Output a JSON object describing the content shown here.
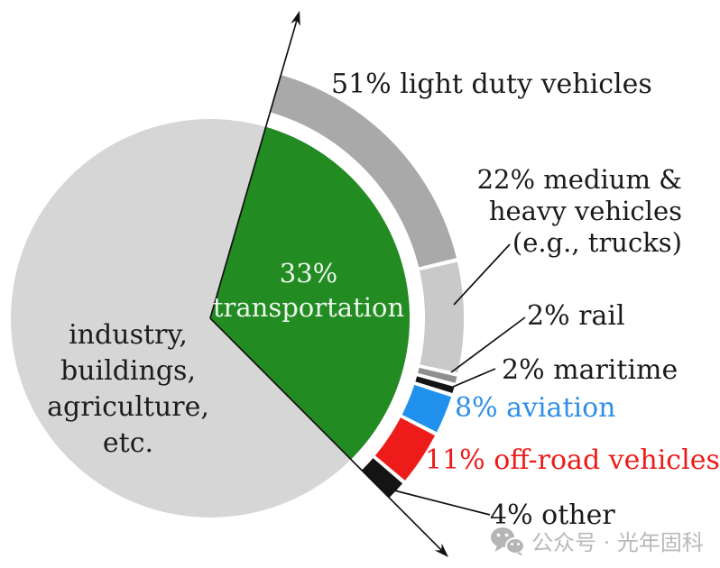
{
  "labels": {
    "light_duty": "51% light duty vehicles",
    "medium_heavy_lines": [
      "22% medium &",
      "heavy vehicles",
      "(e.g., trucks)"
    ],
    "rail": "2% rail",
    "maritime": "2% maritime",
    "aviation": "8% aviation",
    "off_road": "11% off-road vehicles",
    "other": "4% other",
    "wedge_lines": [
      "33%",
      "transportation"
    ],
    "main_lines": [
      "industry,",
      "buildings,",
      "agriculture,",
      "etc."
    ]
  },
  "watermark": {
    "icon": "wechat-icon",
    "text": "公众号 · 光年固科"
  },
  "colors": {
    "transportation_green": "#228b22",
    "industry_gray": "#d6d6d6",
    "light_duty_gray": "#a9a9a9",
    "medium_heavy_gray": "#c9c9c9",
    "rail_gray": "#8f8f8f",
    "maritime_black": "#141414",
    "aviation_blue": "#2191ee",
    "off_road_red": "#ee1b1b",
    "other_black": "#141414",
    "aviation_text": "#2e8fe8",
    "off_road_text": "#ee1b1b",
    "watermark_gray": "#b9b9b9",
    "line_black": "#111111"
  },
  "chart_data": {
    "type": "pie",
    "title": "",
    "main": {
      "categories": [
        "industry, buildings, agriculture, etc.",
        "transportation"
      ],
      "values": [
        67,
        33
      ],
      "colors": [
        "#d6d6d6",
        "#228b22"
      ],
      "units": "percent of total emissions"
    },
    "transportation_breakdown": {
      "note": "outer arc ring, percent of transportation (33% slice)",
      "categories": [
        "light duty vehicles",
        "medium & heavy vehicles (e.g., trucks)",
        "rail",
        "maritime",
        "aviation",
        "off-road vehicles",
        "other"
      ],
      "values": [
        51,
        22,
        2,
        2,
        8,
        11,
        4
      ],
      "colors": [
        "#a9a9a9",
        "#c9c9c9",
        "#8f8f8f",
        "#141414",
        "#2191ee",
        "#ee1b1b",
        "#141414"
      ],
      "label_colors": [
        "#1a1a1a",
        "#1a1a1a",
        "#1a1a1a",
        "#1a1a1a",
        "#2e8fe8",
        "#ee1b1b",
        "#1a1a1a"
      ]
    },
    "legend_position": "labels around ring with leader lines",
    "grid": false
  }
}
